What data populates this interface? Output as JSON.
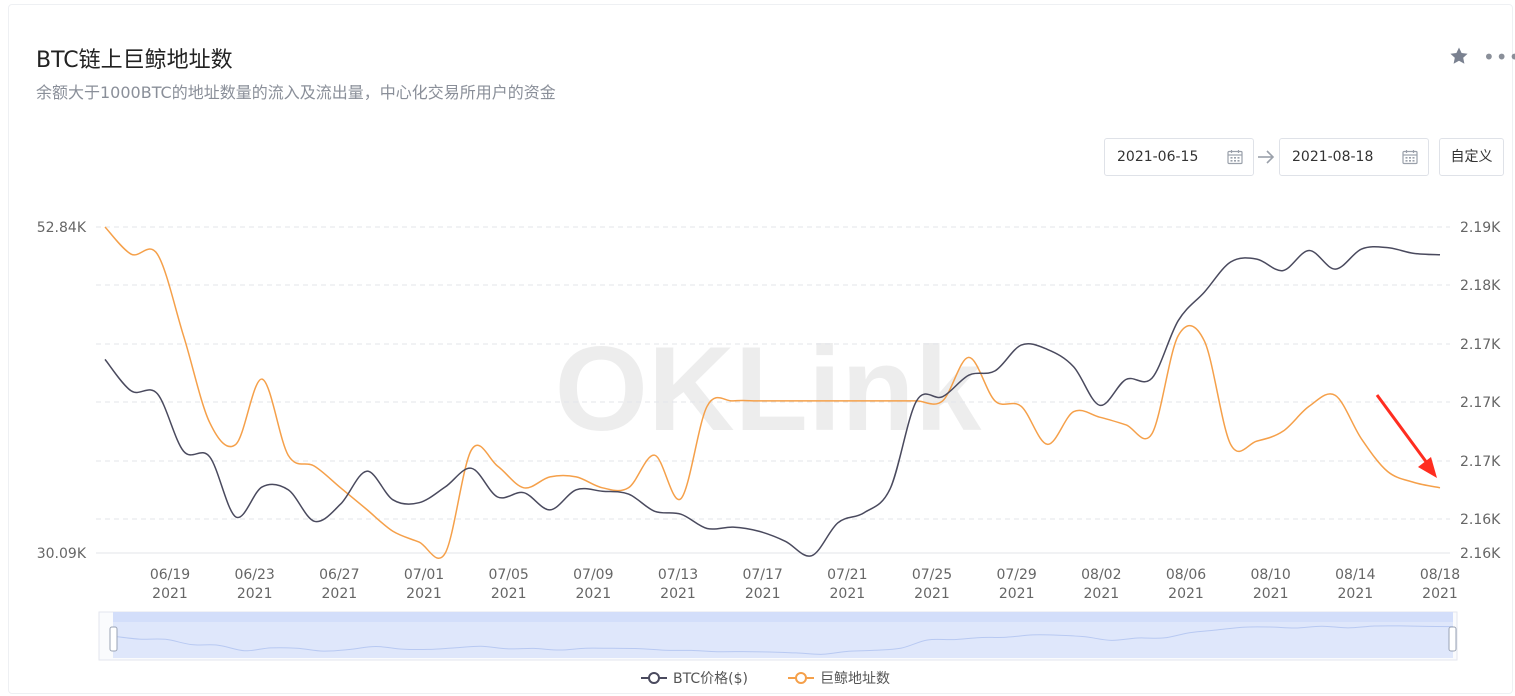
{
  "header": {
    "title": "BTC链上巨鲸地址数",
    "subtitle": "余额大于1000BTC的地址数量的流入及流出量，中心化交易所用户的资金",
    "star_icon": "star-icon",
    "more_icon": "more-icon"
  },
  "date_range": {
    "start": "2021-06-15",
    "end": "2021-08-18",
    "custom_label": "自定义"
  },
  "watermark": "OKLink",
  "colors": {
    "btc": "#4a4a5e",
    "whale": "#f5a04a",
    "grid": "#e3e5ea",
    "annotation": "#ff2d20"
  },
  "chart_data": {
    "type": "line",
    "left_axis_ticks": [
      "52.84K",
      "30.09K"
    ],
    "right_axis_ticks": [
      "2.19K",
      "2.18K",
      "2.17K",
      "2.17K",
      "2.17K",
      "2.16K",
      "2.16K"
    ],
    "x_ticks": [
      {
        "date": "06/19",
        "year": "2021"
      },
      {
        "date": "06/23",
        "year": "2021"
      },
      {
        "date": "06/27",
        "year": "2021"
      },
      {
        "date": "07/01",
        "year": "2021"
      },
      {
        "date": "07/05",
        "year": "2021"
      },
      {
        "date": "07/09",
        "year": "2021"
      },
      {
        "date": "07/13",
        "year": "2021"
      },
      {
        "date": "07/17",
        "year": "2021"
      },
      {
        "date": "07/21",
        "year": "2021"
      },
      {
        "date": "07/25",
        "year": "2021"
      },
      {
        "date": "07/29",
        "year": "2021"
      },
      {
        "date": "08/02",
        "year": "2021"
      },
      {
        "date": "08/06",
        "year": "2021"
      },
      {
        "date": "08/10",
        "year": "2021"
      },
      {
        "date": "08/14",
        "year": "2021"
      },
      {
        "date": "08/18",
        "year": "2021"
      }
    ],
    "left_range": [
      30.09,
      52.84
    ],
    "right_range": [
      2.16,
      2.19
    ],
    "series": [
      {
        "name": "BTC价格($)",
        "axis": "left",
        "values": [
          43.6,
          41.4,
          41.2,
          37.2,
          36.8,
          32.6,
          34.7,
          34.5,
          32.3,
          33.5,
          35.8,
          33.8,
          33.6,
          34.7,
          36.0,
          34.0,
          34.3,
          33.1,
          34.5,
          34.4,
          34.2,
          33.0,
          32.8,
          31.8,
          31.9,
          31.6,
          30.9,
          29.9,
          32.2,
          32.9,
          34.6,
          40.7,
          41.0,
          42.5,
          42.8,
          44.6,
          44.3,
          43.1,
          40.4,
          42.2,
          42.3,
          46.3,
          48.3,
          50.4,
          50.6,
          49.8,
          51.2,
          49.9,
          51.3,
          51.4,
          51.0,
          50.9
        ]
      },
      {
        "name": "巨鲸地址数",
        "axis": "right",
        "values": [
          2.19,
          2.1875,
          2.1875,
          2.18,
          2.172,
          2.17,
          2.176,
          2.169,
          2.168,
          2.166,
          2.164,
          2.162,
          2.161,
          2.16,
          2.1695,
          2.168,
          2.166,
          2.167,
          2.167,
          2.166,
          2.166,
          2.169,
          2.165,
          2.1735,
          2.174,
          2.174,
          2.174,
          2.174,
          2.174,
          2.174,
          2.174,
          2.174,
          2.174,
          2.178,
          2.174,
          2.1735,
          2.17,
          2.173,
          2.1725,
          2.1718,
          2.171,
          2.18,
          2.1795,
          2.17,
          2.1703,
          2.1712,
          2.1735,
          2.1745,
          2.1705,
          2.1675,
          2.1665,
          2.166
        ]
      }
    ]
  }
}
